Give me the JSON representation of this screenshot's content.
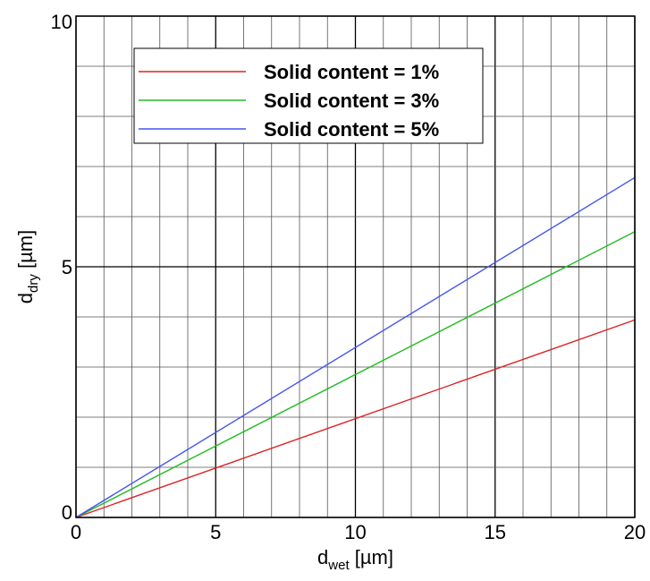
{
  "chart_data": {
    "type": "line",
    "title": "",
    "xlabel": {
      "main": "d",
      "sub": "wet",
      "unit": " [µm]"
    },
    "ylabel": {
      "main": "d",
      "sub": "dry",
      "unit": " [µm]"
    },
    "xlim": [
      0,
      20
    ],
    "ylim": [
      0,
      10
    ],
    "xticks": [
      0,
      5,
      10,
      15,
      20
    ],
    "yticks": [
      0,
      5,
      10
    ],
    "xtick_labels": [
      "0",
      "5",
      "10",
      "15",
      "20"
    ],
    "ytick_labels": [
      "0",
      "5",
      "10"
    ],
    "x_minor_step": 1,
    "y_minor_step": 1,
    "grid": true,
    "legend_position": "top-left",
    "series": [
      {
        "name": "Solid content = 1%",
        "color": "#dd2222",
        "x": [
          0,
          20
        ],
        "y": [
          0,
          3.94
        ]
      },
      {
        "name": "Solid content = 3%",
        "color": "#22bb22",
        "x": [
          0,
          20
        ],
        "y": [
          0,
          5.7
        ]
      },
      {
        "name": "Solid content = 5%",
        "color": "#4455ee",
        "x": [
          0,
          20
        ],
        "y": [
          0,
          6.78
        ]
      }
    ]
  }
}
